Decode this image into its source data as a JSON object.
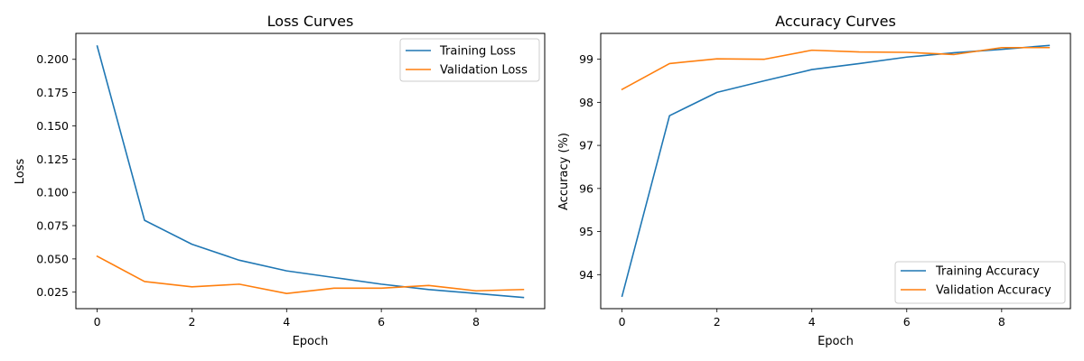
{
  "chart_data": [
    {
      "type": "line",
      "title": "Loss Curves",
      "xlabel": "Epoch",
      "ylabel": "Loss",
      "xlim": [
        -0.45,
        9.45
      ],
      "ylim": [
        0.0126,
        0.2195
      ],
      "xticks": [
        0,
        2,
        4,
        6,
        8
      ],
      "xtick_labels": [
        "0",
        "2",
        "4",
        "6",
        "8"
      ],
      "yticks": [
        0.025,
        0.05,
        0.075,
        0.1,
        0.125,
        0.15,
        0.175,
        0.2
      ],
      "ytick_labels": [
        "0.025",
        "0.050",
        "0.075",
        "0.100",
        "0.125",
        "0.150",
        "0.175",
        "0.200"
      ],
      "legend_position": "top-right",
      "grid": false,
      "x": [
        0,
        1,
        2,
        3,
        4,
        5,
        6,
        7,
        8,
        9
      ],
      "series": [
        {
          "name": "Training Loss",
          "color": "#1f77b4",
          "values": [
            0.21,
            0.079,
            0.061,
            0.049,
            0.041,
            0.036,
            0.031,
            0.027,
            0.024,
            0.021
          ]
        },
        {
          "name": "Validation Loss",
          "color": "#ff7f0e",
          "values": [
            0.052,
            0.033,
            0.029,
            0.031,
            0.024,
            0.028,
            0.028,
            0.03,
            0.026,
            0.027
          ]
        }
      ]
    },
    {
      "type": "line",
      "title": "Accuracy Curves",
      "xlabel": "Epoch",
      "ylabel": "Accuracy (%)",
      "xlim": [
        -0.45,
        9.45
      ],
      "ylim": [
        93.21,
        99.6
      ],
      "xticks": [
        0,
        2,
        4,
        6,
        8
      ],
      "xtick_labels": [
        "0",
        "2",
        "4",
        "6",
        "8"
      ],
      "yticks": [
        94,
        95,
        96,
        97,
        98,
        99
      ],
      "ytick_labels": [
        "94",
        "95",
        "96",
        "97",
        "98",
        "99"
      ],
      "legend_position": "bottom-right",
      "grid": false,
      "x": [
        0,
        1,
        2,
        3,
        4,
        5,
        6,
        7,
        8,
        9
      ],
      "series": [
        {
          "name": "Training Accuracy",
          "color": "#1f77b4",
          "values": [
            93.5,
            97.69,
            98.23,
            98.5,
            98.76,
            98.9,
            99.05,
            99.15,
            99.23,
            99.32
          ]
        },
        {
          "name": "Validation Accuracy",
          "color": "#ff7f0e",
          "values": [
            98.3,
            98.9,
            99.01,
            99.0,
            99.21,
            99.17,
            99.16,
            99.11,
            99.27,
            99.27
          ]
        }
      ]
    }
  ]
}
